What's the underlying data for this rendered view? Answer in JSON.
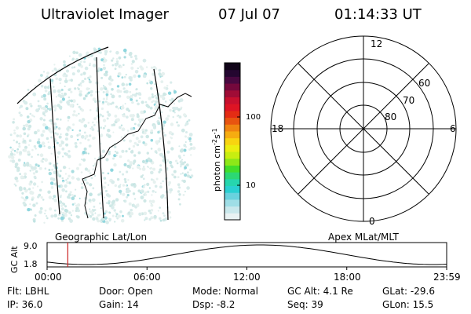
{
  "header": {
    "title": "Ultraviolet Imager",
    "date": "07 Jul 07",
    "time": "01:14:33 UT"
  },
  "colorbar": {
    "unit_main": "photon cm",
    "unit_sup1": "-2",
    "unit_mid": "s",
    "unit_sup2": "-1",
    "ticks": [
      "100",
      "10"
    ],
    "colors": [
      "#e9f2f3",
      "#c9e8ec",
      "#9fdee6",
      "#69d2de",
      "#2ad0d2",
      "#26d6ae",
      "#2cd874",
      "#42de2a",
      "#8ee818",
      "#c8ee10",
      "#ecee10",
      "#f8d410",
      "#f6ac10",
      "#f08410",
      "#e85410",
      "#e42c14",
      "#de1424",
      "#c8102e",
      "#a00c36",
      "#74083c",
      "#480840",
      "#240630",
      "#100418"
    ]
  },
  "polar": {
    "top_label": "12",
    "bottom_label": "0",
    "left_label": "18",
    "right_label": "6",
    "ring_labels": [
      "60",
      "70",
      "80"
    ]
  },
  "timeline": {
    "axis_label": "GC Alt",
    "y_ticks": [
      "9.0",
      "1.8"
    ],
    "left_title": "Geographic Lat/Lon",
    "right_title": "Apex MLat/MLT",
    "x_ticks": [
      "00:00",
      "06:00",
      "12:00",
      "18:00",
      "23:59"
    ],
    "marker_color": "#cc2222"
  },
  "footer": {
    "row1": [
      {
        "label": "Flt:",
        "value": "LBHL"
      },
      {
        "label": "Door:",
        "value": "Open"
      },
      {
        "label": "Mode:",
        "value": "Normal"
      },
      {
        "label": "GC Alt:",
        "value": "4.1 Re"
      },
      {
        "label": "GLat:",
        "value": "-29.6"
      }
    ],
    "row2": [
      {
        "label": "IP:",
        "value": "36.0"
      },
      {
        "label": "Gain:",
        "value": "14"
      },
      {
        "label": "Dsp:",
        "value": "-8.2"
      },
      {
        "label": "Seq:",
        "value": "39"
      },
      {
        "label": "GLon:",
        "value": "15.5"
      }
    ]
  }
}
